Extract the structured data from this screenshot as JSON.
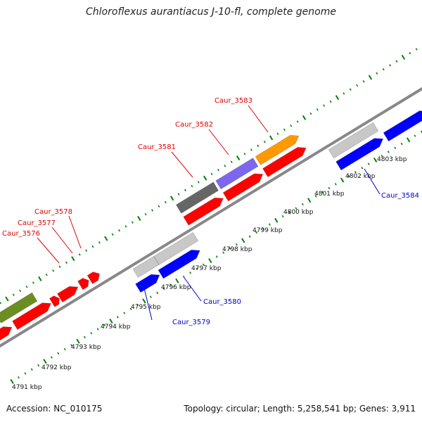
{
  "map": {
    "title": "Chloroflexus aurantiacus J-10-fl, complete genome",
    "accession": "Accession: NC_010175",
    "summary": "Topology: circular; Length: 5,258,541 bp; Genes: 3,911"
  },
  "kbp_labels": [
    "4791 kbp",
    "4792 kbp",
    "4793 kbp",
    "4794 kbp",
    "4795 kbp",
    "4796 kbp",
    "4797 kbp",
    "4798 kbp",
    "4799 kbp",
    "4800 kbp",
    "4801 kbp",
    "4802 kbp",
    "4803 kbp"
  ],
  "gene_labels": [
    {
      "name": "Caur_3576",
      "color": "#e00000"
    },
    {
      "name": "Caur_3577",
      "color": "#e00000"
    },
    {
      "name": "Caur_3578",
      "color": "#e00000"
    },
    {
      "name": "Caur_3579",
      "color": "#0000cc"
    },
    {
      "name": "Caur_3580",
      "color": "#0000cc"
    },
    {
      "name": "Caur_3581",
      "color": "#e00000"
    },
    {
      "name": "Caur_3582",
      "color": "#e00000"
    },
    {
      "name": "Caur_3583",
      "color": "#e00000"
    },
    {
      "name": "Caur_3584",
      "color": "#0000cc"
    }
  ],
  "colors": {
    "gene_red": "#ff0000",
    "gene_blue": "#0000ff",
    "gene_grey": "#c8c8c8",
    "gene_olive": "#6b8e23",
    "gene_dark_grey": "#666666",
    "gene_purple": "#7b68ee",
    "gene_orange": "#ff9900",
    "backbone": "#888888",
    "ticks": "#008000"
  }
}
